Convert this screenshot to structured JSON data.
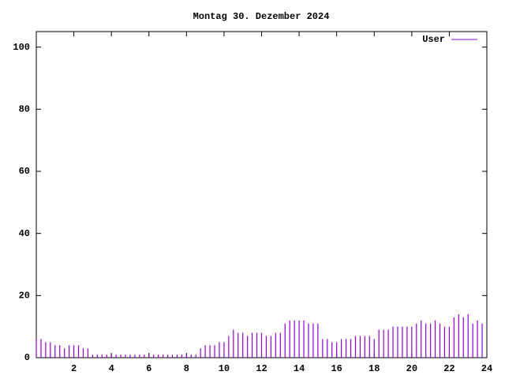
{
  "chart_data": {
    "type": "impulses",
    "title": "Montag 30. Dezember 2024",
    "x": [
      0,
      0.25,
      0.5,
      0.75,
      1,
      1.25,
      1.5,
      1.75,
      2,
      2.25,
      2.5,
      2.75,
      3,
      3.25,
      3.5,
      3.75,
      4,
      4.25,
      4.5,
      4.75,
      5,
      5.25,
      5.5,
      5.75,
      6,
      6.25,
      6.5,
      6.75,
      7,
      7.25,
      7.5,
      7.75,
      8,
      8.25,
      8.5,
      8.75,
      9,
      9.25,
      9.5,
      9.75,
      10,
      10.25,
      10.5,
      10.75,
      11,
      11.25,
      11.5,
      11.75,
      12,
      12.25,
      12.5,
      12.75,
      13,
      13.25,
      13.5,
      13.75,
      14,
      14.25,
      14.5,
      14.75,
      15,
      15.25,
      15.5,
      15.75,
      16,
      16.25,
      16.5,
      16.75,
      17,
      17.25,
      17.5,
      17.75,
      18,
      18.25,
      18.5,
      18.75,
      19,
      19.25,
      19.5,
      19.75,
      20,
      20.25,
      20.5,
      20.75,
      21,
      21.25,
      21.5,
      21.75,
      22,
      22.25,
      22.5,
      22.75,
      23,
      23.25,
      23.5,
      23.75
    ],
    "series": [
      {
        "name": "User",
        "color": "#9400d3",
        "values": [
          6,
          6,
          5,
          5,
          4,
          4,
          3,
          4,
          4,
          4,
          3,
          3,
          1,
          1,
          1,
          1,
          1,
          1,
          1,
          1,
          1,
          1,
          1,
          1,
          1,
          1,
          1,
          1,
          1,
          1,
          1,
          1,
          1,
          1,
          1,
          3,
          4,
          4,
          4,
          5,
          5,
          7,
          9,
          8,
          8,
          7,
          8,
          8,
          8,
          7,
          7,
          8,
          8,
          11,
          12,
          12,
          12,
          12,
          11,
          11,
          11,
          6,
          6,
          5,
          5,
          6,
          6,
          6,
          7,
          7,
          7,
          7,
          6,
          9,
          9,
          9,
          10,
          10,
          10,
          10,
          10,
          11,
          12,
          11,
          11,
          12,
          11,
          10,
          10,
          13,
          14,
          13,
          14,
          11,
          12,
          11
        ]
      }
    ],
    "xlim": [
      0,
      24
    ],
    "xticks": [
      2,
      4,
      6,
      8,
      10,
      12,
      14,
      16,
      18,
      20,
      22,
      24
    ],
    "ylim": [
      0,
      105
    ],
    "yticks": [
      0,
      20,
      40,
      60,
      80,
      100
    ]
  }
}
